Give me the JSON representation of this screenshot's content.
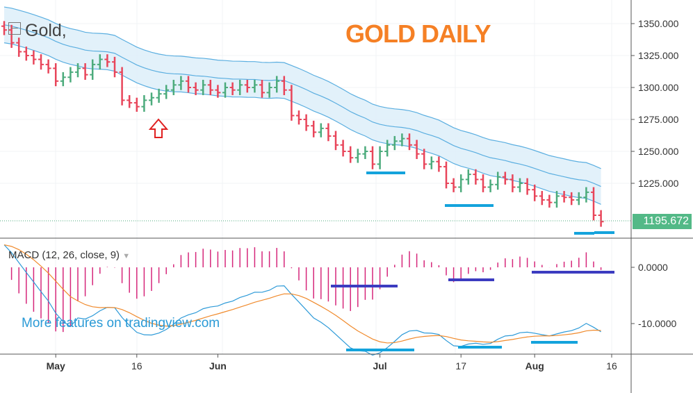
{
  "header": {
    "symbol": "Gold,",
    "title": "GOLD DAILY",
    "indicator": "MACD (12, 26, close, 9)",
    "watermark": "More features on tradingview.com",
    "last_price": "1195.672"
  },
  "colors": {
    "up": "#4cab7c",
    "down": "#e8455a",
    "band": "#5aaee0",
    "band_fill": "#dff0fa",
    "macd": "#2d9ad8",
    "signal": "#f08a2c",
    "hist": "#d6267a",
    "title": "#f58025",
    "mark_cyan": "#14a3dc",
    "mark_blue": "#3c3cc0"
  },
  "chart_data": [
    {
      "type": "candlestick",
      "title": "GOLD DAILY",
      "ylim": [
        1180,
        1360
      ],
      "y_ticks": [
        "1350.000",
        "1325.000",
        "1300.000",
        "1275.000",
        "1250.000",
        "1225.000"
      ],
      "y_tick_values": [
        1350,
        1325,
        1300,
        1275,
        1250,
        1225
      ],
      "x_ticks": [
        "May",
        "16",
        "Jun",
        "Jul",
        "17",
        "Aug",
        "16"
      ],
      "x_tick_index": [
        7,
        18,
        29,
        51,
        62,
        72,
        83
      ],
      "closes": [
        1345,
        1335,
        1328,
        1325,
        1322,
        1318,
        1315,
        1305,
        1308,
        1312,
        1315,
        1310,
        1318,
        1322,
        1320,
        1312,
        1290,
        1288,
        1285,
        1290,
        1292,
        1295,
        1298,
        1302,
        1305,
        1300,
        1298,
        1302,
        1298,
        1296,
        1300,
        1298,
        1302,
        1300,
        1302,
        1296,
        1300,
        1305,
        1298,
        1278,
        1275,
        1270,
        1265,
        1268,
        1262,
        1255,
        1250,
        1245,
        1248,
        1250,
        1240,
        1250,
        1255,
        1258,
        1260,
        1255,
        1248,
        1240,
        1242,
        1238,
        1225,
        1222,
        1228,
        1232,
        1228,
        1222,
        1224,
        1230,
        1228,
        1222,
        1225,
        1220,
        1215,
        1212,
        1210,
        1215,
        1214,
        1212,
        1214,
        1218,
        1200,
        1195
      ],
      "last_value": 1195.672
    },
    {
      "type": "line",
      "title": "MACD (12, 26, close, 9)",
      "ylim": [
        -15,
        5
      ],
      "y_ticks": [
        "0.0000",
        "-10.0000"
      ],
      "y_tick_values": [
        0,
        -10
      ],
      "series": [
        {
          "name": "MACD"
        },
        {
          "name": "Signal"
        },
        {
          "name": "Histogram"
        }
      ]
    }
  ]
}
